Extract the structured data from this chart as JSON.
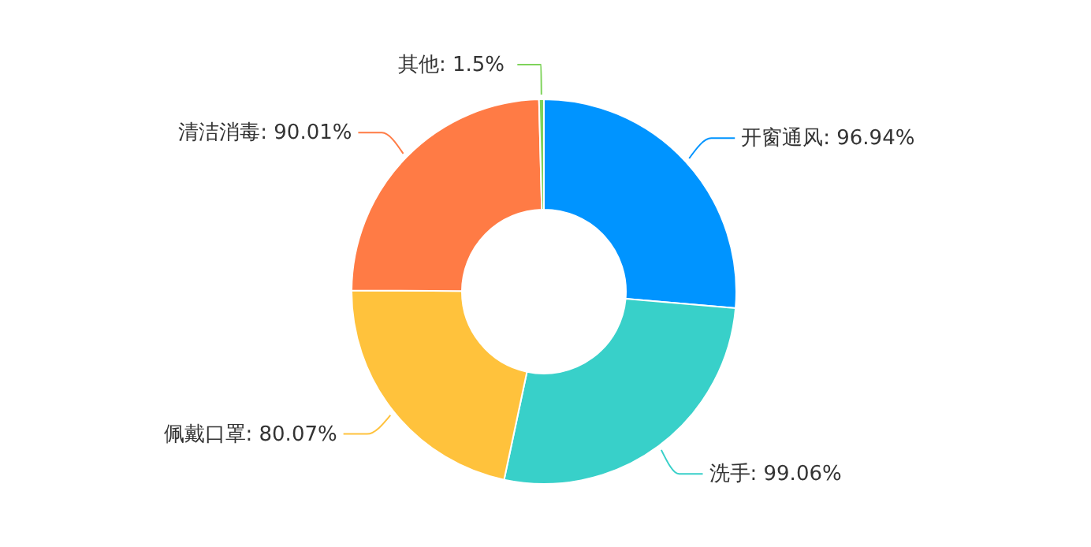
{
  "chart_data": {
    "type": "donut",
    "categories": [
      "开窗通风",
      "洗手",
      "佩戴口罩",
      "清洁消毒",
      "其他"
    ],
    "values": [
      96.94,
      99.06,
      80.07,
      90.01,
      1.5
    ],
    "colors": [
      "#0094ff",
      "#38d0c9",
      "#ffc23c",
      "#ff7b45",
      "#7ed35a"
    ],
    "value_labels": [
      ": 96.94%",
      ": 99.06%",
      ": 80.07%",
      ": 90.01%",
      " : 1.5%"
    ]
  }
}
